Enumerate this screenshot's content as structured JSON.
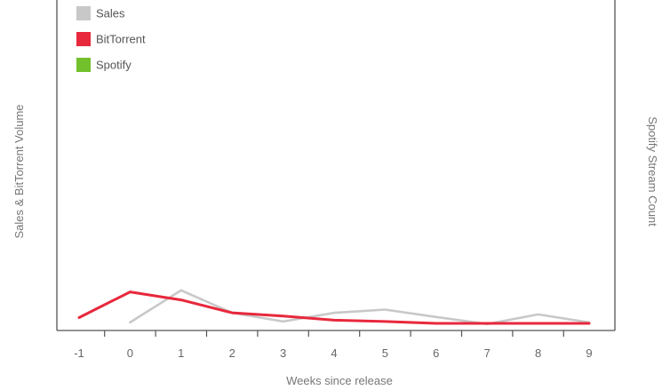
{
  "chart_data": {
    "type": "line",
    "xlabel": "Weeks since release",
    "ylabel_left": "Sales & BitTorrent Volume",
    "ylabel_right": "Spotify Stream Count",
    "x": [
      -1,
      0,
      1,
      2,
      3,
      4,
      5,
      6,
      7,
      8,
      9
    ],
    "x_tick_labels": [
      "-1",
      "0",
      "1",
      "2",
      "3",
      "4",
      "5",
      "6",
      "7",
      "8",
      "9"
    ],
    "xlim": [
      -1.5,
      9.5
    ],
    "ylim": [
      0,
      100
    ],
    "grid": false,
    "legend_position": "top-left",
    "series": [
      {
        "name": "Sales",
        "color": "#c8c8c8",
        "x": [
          0,
          1,
          2,
          3,
          4,
          5,
          6,
          7,
          8,
          9
        ],
        "values": [
          2.5,
          12.5,
          5.5,
          2.8,
          5.5,
          6.5,
          4.2,
          2.0,
          5.0,
          2.5
        ]
      },
      {
        "name": "BitTorrent",
        "color": "#e8283c",
        "x": [
          -1,
          0,
          1,
          2,
          3,
          4,
          5,
          6,
          7,
          8,
          9
        ],
        "values": [
          4.0,
          12.0,
          9.5,
          5.5,
          4.5,
          3.2,
          2.8,
          2.2,
          2.2,
          2.2,
          2.2
        ]
      },
      {
        "name": "Spotify",
        "color": "#72c02c",
        "x": [],
        "values": []
      }
    ]
  }
}
